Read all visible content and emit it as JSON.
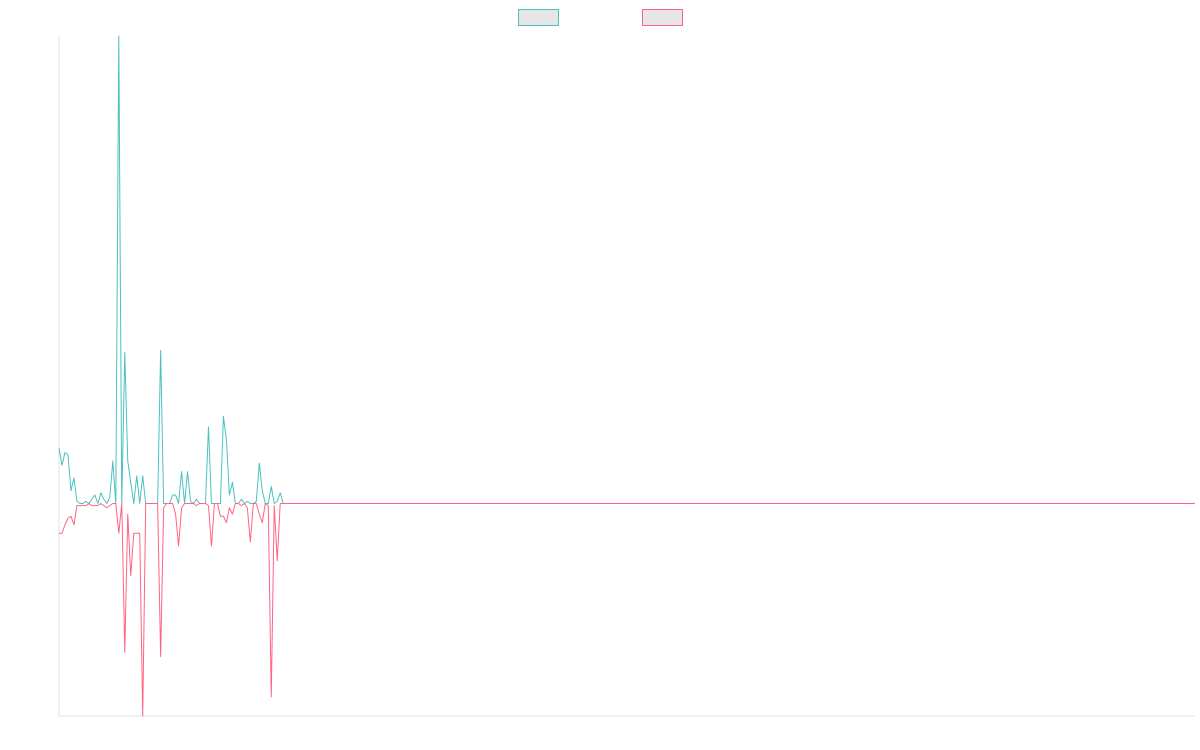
{
  "chart_data": {
    "type": "line",
    "title": "",
    "xlabel": "",
    "ylabel": "",
    "grid": false,
    "legend": {
      "position": "top-center",
      "entries": [
        {
          "name": "",
          "color": "#4bc0c0",
          "fill": "#e6e6e6"
        },
        {
          "name": "",
          "color": "#ff6384",
          "fill": "#e6e6e6"
        }
      ]
    },
    "ylim": [
      -100,
      220
    ],
    "x_count": 381,
    "series": [
      {
        "name": "",
        "color": "#4bc0c0",
        "values": [
          26,
          18,
          24,
          23,
          6,
          12,
          1,
          0,
          0,
          1,
          0,
          2,
          4,
          0,
          5,
          2,
          0,
          3,
          20,
          0,
          220,
          0,
          71,
          20,
          10,
          0,
          13,
          0,
          13,
          0,
          0,
          0,
          0,
          0,
          72,
          0,
          0,
          0,
          4,
          4,
          0,
          15,
          0,
          15,
          1,
          0,
          2,
          0,
          0,
          0,
          36,
          0,
          0,
          0,
          0,
          41,
          30,
          4,
          10,
          0,
          0,
          2,
          0,
          1,
          0,
          0,
          1,
          19,
          6,
          0,
          0,
          8,
          0,
          1,
          5,
          0,
          0,
          0
        ]
      },
      {
        "name": "",
        "color": "#ff6384",
        "values": [
          -14,
          -14,
          -10,
          -7,
          -6,
          -10,
          -1,
          -1,
          -1,
          -1,
          0,
          -1,
          -1,
          -1,
          0,
          -1,
          -2,
          -1,
          0,
          0,
          -14,
          0,
          -70,
          -5,
          -34,
          -14,
          -14,
          -14,
          -100,
          0,
          0,
          0,
          0,
          0,
          -72,
          -2,
          0,
          0,
          0,
          -5,
          -20,
          -2,
          0,
          0,
          0,
          0,
          -1,
          0,
          0,
          0,
          -1,
          -20,
          0,
          0,
          -6,
          -6,
          -9,
          -2,
          -5,
          0,
          0,
          -1,
          0,
          -2,
          -18,
          0,
          0,
          -5,
          -9,
          0,
          -1,
          -91,
          -1,
          -27,
          0,
          0,
          0,
          0
        ]
      }
    ]
  }
}
